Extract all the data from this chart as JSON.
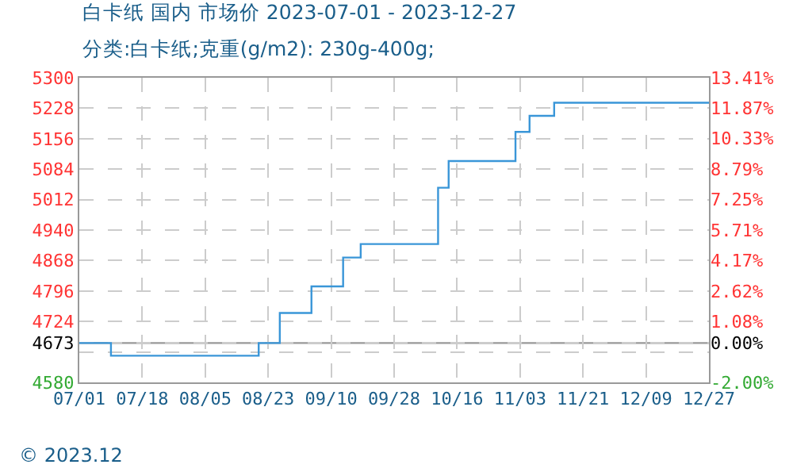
{
  "chart_data": {
    "type": "step",
    "title": "白卡纸 国内 市场价 2023-07-01 - 2023-12-27",
    "subtitle": "分类:白卡纸;克重(g/m2): 230g-400g;",
    "x": [
      "2023-07-01",
      "2023-07-10",
      "2023-08-21",
      "2023-08-27",
      "2023-09-05",
      "2023-09-14",
      "2023-09-19",
      "2023-10-11",
      "2023-10-14",
      "2023-11-02",
      "2023-11-06",
      "2023-11-13",
      "2023-12-27"
    ],
    "series": [
      {
        "color": "#3a96d8",
        "values": [
          4673,
          4643,
          4673,
          4744,
          4807,
          4875,
          4907,
          5040,
          5103,
          5172,
          5210,
          5241,
          5241
        ]
      }
    ],
    "xlim": [
      "2023-07-01",
      "2023-12-27"
    ],
    "xticks": [
      {
        "value": "2023-07-01",
        "label": "07/01"
      },
      {
        "value": "2023-07-18T21:36",
        "label": "07/18"
      },
      {
        "value": "2023-08-05T19:12",
        "label": "08/05"
      },
      {
        "value": "2023-08-23T16:48",
        "label": "08/23"
      },
      {
        "value": "2023-09-10T14:24",
        "label": "09/10"
      },
      {
        "value": "2023-09-28T12:00",
        "label": "09/28"
      },
      {
        "value": "2023-10-16T09:36",
        "label": "10/16"
      },
      {
        "value": "2023-11-03T07:12",
        "label": "11/03"
      },
      {
        "value": "2023-11-21T04:48",
        "label": "11/21"
      },
      {
        "value": "2023-12-09T02:24",
        "label": "12/09"
      },
      {
        "value": "2023-12-27",
        "label": "12/27"
      }
    ],
    "ylim": [
      4580,
      5300
    ],
    "yticks": [
      4580,
      {
        "value": 4652,
        "label": null
      },
      4673,
      4724,
      4796,
      4868,
      4940,
      5012,
      5084,
      5156,
      5228,
      5300
    ],
    "y2lim": [
      -2.0,
      13.41
    ],
    "y2ticks": [
      {
        "value": -2.0,
        "label": "-2.00%"
      },
      {
        "value": 0.0,
        "label": "0.00%"
      },
      {
        "value": 1.08,
        "label": "1.08%"
      },
      {
        "value": 2.62,
        "label": "2.62%"
      },
      {
        "value": 4.17,
        "label": "4.17%"
      },
      {
        "value": 5.71,
        "label": "5.71%"
      },
      {
        "value": 7.25,
        "label": "7.25%"
      },
      {
        "value": 8.79,
        "label": "8.79%"
      },
      {
        "value": 10.33,
        "label": "10.33%"
      },
      {
        "value": 11.87,
        "label": "11.87%"
      },
      {
        "value": 13.41,
        "label": "13.41%"
      }
    ],
    "ref_lines": [
      {
        "axis": "y",
        "value": 4673,
        "color": "#999999"
      }
    ],
    "grid": true,
    "annotations": [
      "© 2023.12"
    ]
  }
}
